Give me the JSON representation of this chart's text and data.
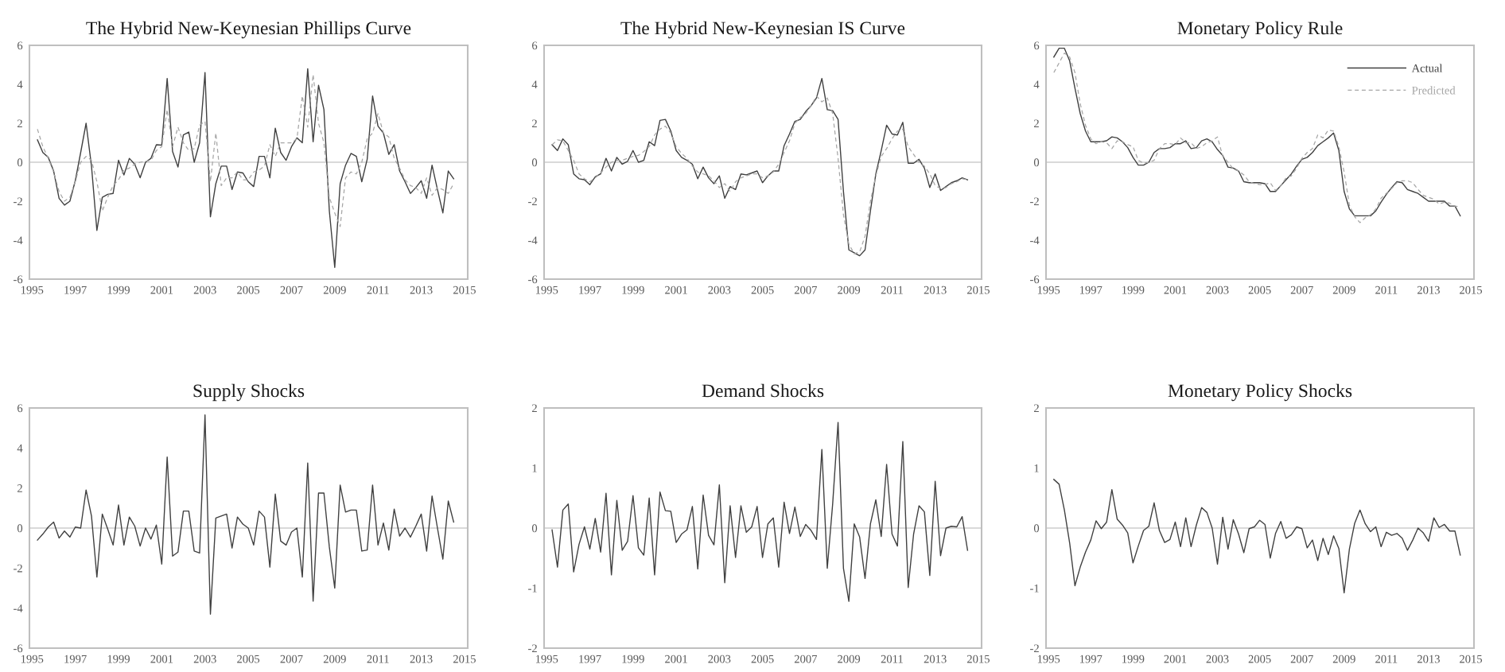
{
  "chart_data": [
    {
      "type": "line",
      "title": "The Hybrid New-Keynesian Phillips Curve",
      "x": [
        1995.25,
        1995.5,
        1995.75,
        1996,
        1996.25,
        1996.5,
        1996.75,
        1997,
        1997.25,
        1997.5,
        1997.75,
        1998,
        1998.25,
        1998.5,
        1998.75,
        1999,
        1999.25,
        1999.5,
        1999.75,
        2000,
        2000.25,
        2000.5,
        2000.75,
        2001,
        2001.25,
        2001.5,
        2001.75,
        2002,
        2002.25,
        2002.5,
        2002.75,
        2003,
        2003.25,
        2003.5,
        2003.75,
        2004,
        2004.25,
        2004.5,
        2004.75,
        2005,
        2005.25,
        2005.5,
        2005.75,
        2006,
        2006.25,
        2006.5,
        2006.75,
        2007,
        2007.25,
        2007.5,
        2007.75,
        2008,
        2008.25,
        2008.5,
        2008.75,
        2009,
        2009.25,
        2009.5,
        2009.75,
        2010,
        2010.25,
        2010.5,
        2010.75,
        2011,
        2011.25,
        2011.5,
        2011.75,
        2012,
        2012.25,
        2012.5,
        2012.75,
        2013,
        2013.25,
        2013.5,
        2013.75,
        2014,
        2014.25,
        2014.5
      ],
      "xlim": [
        1994.88,
        2015.15
      ],
      "xticks": [
        1995,
        1997,
        1999,
        2001,
        2003,
        2005,
        2007,
        2009,
        2011,
        2013,
        2015
      ],
      "ylim": [
        -6,
        6
      ],
      "yticks": [
        -6,
        -4,
        -2,
        0,
        2,
        4,
        6
      ],
      "ref_lines": [
        {
          "axis": "y",
          "value": 0,
          "color": "#d9d9d9"
        }
      ],
      "series": [
        {
          "color": "#404040",
          "line_style": "solid",
          "values": [
            1.15,
            0.5,
            0.25,
            -0.45,
            -1.85,
            -2.2,
            -2.0,
            -0.95,
            0.5,
            2.0,
            -0.2,
            -3.5,
            -1.8,
            -1.65,
            -1.6,
            0.1,
            -0.65,
            0.2,
            -0.1,
            -0.8,
            0.0,
            0.2,
            0.9,
            0.88,
            4.3,
            0.55,
            -0.25,
            1.4,
            1.55,
            0.0,
            1.0,
            4.6,
            -2.8,
            -1.1,
            -0.2,
            -0.2,
            -1.4,
            -0.5,
            -0.55,
            -1.0,
            -1.25,
            0.3,
            0.3,
            -0.8,
            1.75,
            0.5,
            0.1,
            0.8,
            1.25,
            1.0,
            4.8,
            1.05,
            3.95,
            2.7,
            -2.5,
            -5.4,
            -1.1,
            -0.15,
            0.45,
            0.3,
            -1.0,
            0.15,
            3.4,
            1.85,
            1.5,
            0.4,
            0.9,
            -0.45,
            -1.0,
            -1.6,
            -1.3,
            -0.95,
            -1.85,
            -0.15,
            -1.4,
            -2.6,
            -0.45,
            -0.85
          ]
        },
        {
          "color": "#a6a6a6",
          "line_style": "dashed",
          "values": [
            1.7,
            0.8,
            0.2,
            -0.5,
            -1.5,
            -2.0,
            -1.8,
            -1.0,
            0.0,
            0.3,
            0.1,
            -1.0,
            -2.5,
            -1.8,
            -1.2,
            -0.9,
            -0.4,
            -0.3,
            -0.1,
            0.0,
            0.05,
            0.1,
            0.6,
            0.8,
            2.7,
            0.8,
            1.8,
            1.0,
            0.6,
            0.7,
            1.9,
            2.1,
            -1.0,
            1.5,
            -1.2,
            -0.8,
            -0.8,
            -0.5,
            -0.9,
            -0.9,
            -0.5,
            -0.4,
            -0.2,
            0.9,
            0.3,
            1.0,
            1.0,
            1.0,
            1.2,
            3.4,
            1.8,
            4.5,
            2.0,
            1.0,
            -1.8,
            -2.6,
            -3.3,
            -0.8,
            -0.5,
            -0.6,
            0.0,
            1.2,
            1.5,
            2.5,
            1.5,
            1.3,
            0.2,
            -0.3,
            -0.9,
            -1.2,
            -1.3,
            -1.6,
            -0.8,
            -1.7,
            -1.3,
            -1.4,
            -1.6,
            -1.1
          ]
        }
      ]
    },
    {
      "type": "line",
      "title": "The Hybrid New-Keynesian IS Curve",
      "x": [
        1995.25,
        1995.5,
        1995.75,
        1996,
        1996.25,
        1996.5,
        1996.75,
        1997,
        1997.25,
        1997.5,
        1997.75,
        1998,
        1998.25,
        1998.5,
        1998.75,
        1999,
        1999.25,
        1999.5,
        1999.75,
        2000,
        2000.25,
        2000.5,
        2000.75,
        2001,
        2001.25,
        2001.5,
        2001.75,
        2002,
        2002.25,
        2002.5,
        2002.75,
        2003,
        2003.25,
        2003.5,
        2003.75,
        2004,
        2004.25,
        2004.5,
        2004.75,
        2005,
        2005.25,
        2005.5,
        2005.75,
        2006,
        2006.25,
        2006.5,
        2006.75,
        2007,
        2007.25,
        2007.5,
        2007.75,
        2008,
        2008.25,
        2008.5,
        2008.75,
        2009,
        2009.25,
        2009.5,
        2009.75,
        2010,
        2010.25,
        2010.5,
        2010.75,
        2011,
        2011.25,
        2011.5,
        2011.75,
        2012,
        2012.25,
        2012.5,
        2012.75,
        2013,
        2013.25,
        2013.5,
        2013.75,
        2014,
        2014.25,
        2014.5
      ],
      "xlim": [
        1994.88,
        2015.15
      ],
      "xticks": [
        1995,
        1997,
        1999,
        2001,
        2003,
        2005,
        2007,
        2009,
        2011,
        2013,
        2015
      ],
      "ylim": [
        -6,
        6
      ],
      "yticks": [
        -6,
        -4,
        -2,
        0,
        2,
        4,
        6
      ],
      "ref_lines": [
        {
          "axis": "y",
          "value": 0,
          "color": "#d9d9d9"
        }
      ],
      "series": [
        {
          "color": "#404040",
          "line_style": "solid",
          "values": [
            0.9,
            0.6,
            1.2,
            0.9,
            -0.6,
            -0.85,
            -0.9,
            -1.15,
            -0.75,
            -0.6,
            0.2,
            -0.45,
            0.25,
            -0.1,
            0.05,
            0.6,
            0.0,
            0.1,
            1.05,
            0.85,
            2.15,
            2.2,
            1.6,
            0.6,
            0.25,
            0.1,
            -0.1,
            -0.85,
            -0.25,
            -0.8,
            -1.1,
            -0.7,
            -1.85,
            -1.25,
            -1.4,
            -0.6,
            -0.65,
            -0.55,
            -0.45,
            -1.05,
            -0.7,
            -0.45,
            -0.45,
            0.85,
            1.45,
            2.1,
            2.2,
            2.6,
            2.9,
            3.3,
            4.3,
            2.7,
            2.65,
            2.2,
            -1.5,
            -4.5,
            -4.65,
            -4.8,
            -4.5,
            -2.5,
            -0.6,
            0.6,
            1.9,
            1.45,
            1.4,
            2.05,
            -0.05,
            -0.05,
            0.15,
            -0.3,
            -1.3,
            -0.6,
            -1.45,
            -1.25,
            -1.05,
            -0.95,
            -0.8,
            -0.9
          ]
        },
        {
          "color": "#a6a6a6",
          "line_style": "dashed",
          "values": [
            0.9,
            1.15,
            1.1,
            0.6,
            0.1,
            -0.6,
            -0.85,
            -1.0,
            -0.8,
            -0.55,
            -0.25,
            0.0,
            0.1,
            0.1,
            0.2,
            0.3,
            0.35,
            0.55,
            0.8,
            1.4,
            1.7,
            1.85,
            1.5,
            0.8,
            0.45,
            0.2,
            -0.2,
            -0.5,
            -0.6,
            -0.7,
            -0.95,
            -1.3,
            -1.1,
            -1.5,
            -1.0,
            -0.8,
            -0.7,
            -0.6,
            -0.6,
            -0.8,
            -0.7,
            -0.5,
            -0.1,
            0.5,
            1.1,
            2.0,
            2.3,
            2.5,
            2.9,
            3.4,
            3.1,
            3.3,
            2.5,
            0.2,
            -2.7,
            -4.2,
            -4.7,
            -4.6,
            -3.8,
            -2.0,
            -0.7,
            0.3,
            0.7,
            1.2,
            1.6,
            1.7,
            0.8,
            0.4,
            0.0,
            -0.2,
            -0.6,
            -1.2,
            -1.35,
            -1.3,
            -1.1,
            -1.0,
            -0.85,
            -0.9
          ]
        }
      ]
    },
    {
      "type": "line",
      "title": "Monetary Policy Rule",
      "legend": "top right",
      "x": [
        1995.25,
        1995.5,
        1995.75,
        1996,
        1996.25,
        1996.5,
        1996.75,
        1997,
        1997.25,
        1997.5,
        1997.75,
        1998,
        1998.25,
        1998.5,
        1998.75,
        1999,
        1999.25,
        1999.5,
        1999.75,
        2000,
        2000.25,
        2000.5,
        2000.75,
        2001,
        2001.25,
        2001.5,
        2001.75,
        2002,
        2002.25,
        2002.5,
        2002.75,
        2003,
        2003.25,
        2003.5,
        2003.75,
        2004,
        2004.25,
        2004.5,
        2004.75,
        2005,
        2005.25,
        2005.5,
        2005.75,
        2006,
        2006.25,
        2006.5,
        2006.75,
        2007,
        2007.25,
        2007.5,
        2007.75,
        2008,
        2008.25,
        2008.5,
        2008.75,
        2009,
        2009.25,
        2009.5,
        2009.75,
        2010,
        2010.25,
        2010.5,
        2010.75,
        2011,
        2011.25,
        2011.5,
        2011.75,
        2012,
        2012.25,
        2012.5,
        2012.75,
        2013,
        2013.25,
        2013.5,
        2013.75,
        2014,
        2014.25,
        2014.5
      ],
      "xlim": [
        1994.88,
        2015.15
      ],
      "xticks": [
        1995,
        1997,
        1999,
        2001,
        2003,
        2005,
        2007,
        2009,
        2011,
        2013,
        2015
      ],
      "ylim": [
        -6,
        6
      ],
      "yticks": [
        -6,
        -4,
        -2,
        0,
        2,
        4,
        6
      ],
      "ref_lines": [
        {
          "axis": "y",
          "value": 0,
          "color": "#d9d9d9"
        }
      ],
      "series": [
        {
          "name": "Actual",
          "color": "#404040",
          "line_style": "solid",
          "values": [
            5.4,
            5.85,
            5.85,
            5.2,
            3.8,
            2.5,
            1.6,
            1.05,
            1.05,
            1.05,
            1.1,
            1.3,
            1.25,
            1.05,
            0.75,
            0.25,
            -0.15,
            -0.15,
            0.0,
            0.5,
            0.7,
            0.7,
            0.75,
            0.95,
            0.95,
            1.1,
            0.7,
            0.75,
            1.1,
            1.2,
            1.05,
            0.65,
            0.35,
            -0.25,
            -0.3,
            -0.45,
            -1.0,
            -1.05,
            -1.05,
            -1.05,
            -1.1,
            -1.5,
            -1.5,
            -1.2,
            -0.9,
            -0.6,
            -0.2,
            0.15,
            0.25,
            0.5,
            0.85,
            1.05,
            1.25,
            1.5,
            0.6,
            -1.5,
            -2.4,
            -2.75,
            -2.75,
            -2.75,
            -2.75,
            -2.5,
            -2.05,
            -1.65,
            -1.3,
            -1.0,
            -1.05,
            -1.4,
            -1.5,
            -1.6,
            -1.8,
            -2.0,
            -2.0,
            -2.0,
            -2.0,
            -2.25,
            -2.25,
            -2.75
          ]
        },
        {
          "name": "Predicted",
          "color": "#a6a6a6",
          "line_style": "dashed",
          "values": [
            4.6,
            5.1,
            5.6,
            5.4,
            4.6,
            3.0,
            1.9,
            1.2,
            0.95,
            1.05,
            1.0,
            0.7,
            1.1,
            1.05,
            0.9,
            0.8,
            0.1,
            -0.05,
            0.0,
            0.1,
            0.7,
            0.95,
            0.95,
            0.9,
            1.25,
            1.0,
            1.0,
            0.7,
            0.8,
            1.0,
            1.1,
            1.3,
            0.3,
            0.0,
            -0.35,
            -0.45,
            -0.65,
            -1.0,
            -1.1,
            -1.15,
            -1.15,
            -1.05,
            -1.45,
            -1.2,
            -0.8,
            -0.7,
            -0.3,
            0.2,
            0.5,
            0.7,
            1.4,
            1.25,
            1.65,
            1.6,
            0.8,
            -0.5,
            -2.2,
            -2.8,
            -3.1,
            -2.85,
            -2.7,
            -2.4,
            -1.85,
            -1.6,
            -1.35,
            -1.05,
            -0.95,
            -0.95,
            -1.05,
            -1.4,
            -1.7,
            -1.8,
            -1.9,
            -2.15,
            -2.05,
            -2.1,
            -2.25,
            -2.3
          ]
        }
      ]
    },
    {
      "type": "line",
      "title": "Supply Shocks",
      "x": [
        1995.25,
        1995.5,
        1995.75,
        1996,
        1996.25,
        1996.5,
        1996.75,
        1997,
        1997.25,
        1997.5,
        1997.75,
        1998,
        1998.25,
        1998.5,
        1998.75,
        1999,
        1999.25,
        1999.5,
        1999.75,
        2000,
        2000.25,
        2000.5,
        2000.75,
        2001,
        2001.25,
        2001.5,
        2001.75,
        2002,
        2002.25,
        2002.5,
        2002.75,
        2003,
        2003.25,
        2003.5,
        2003.75,
        2004,
        2004.25,
        2004.5,
        2004.75,
        2005,
        2005.25,
        2005.5,
        2005.75,
        2006,
        2006.25,
        2006.5,
        2006.75,
        2007,
        2007.25,
        2007.5,
        2007.75,
        2008,
        2008.25,
        2008.5,
        2008.75,
        2009,
        2009.25,
        2009.5,
        2009.75,
        2010,
        2010.25,
        2010.5,
        2010.75,
        2011,
        2011.25,
        2011.5,
        2011.75,
        2012,
        2012.25,
        2012.5,
        2012.75,
        2013,
        2013.25,
        2013.5,
        2013.75,
        2014,
        2014.25,
        2014.5
      ],
      "xlim": [
        1994.88,
        2015.15
      ],
      "xticks": [
        1995,
        1997,
        1999,
        2001,
        2003,
        2005,
        2007,
        2009,
        2011,
        2013,
        2015
      ],
      "ylim": [
        -6,
        6
      ],
      "yticks": [
        -6,
        -4,
        -2,
        0,
        2,
        4,
        6
      ],
      "ref_lines": [
        {
          "axis": "y",
          "value": 0,
          "color": "#d9d9d9"
        }
      ],
      "series": [
        {
          "color": "#404040",
          "line_style": "solid",
          "values": [
            -0.6,
            -0.3,
            0.05,
            0.3,
            -0.5,
            -0.15,
            -0.45,
            0.05,
            0.0,
            1.9,
            0.6,
            -2.45,
            0.7,
            -0.05,
            -0.85,
            1.15,
            -0.85,
            0.55,
            0.1,
            -0.9,
            0.0,
            -0.55,
            0.15,
            -1.8,
            3.55,
            -1.4,
            -1.2,
            0.85,
            0.85,
            -1.15,
            -1.25,
            5.65,
            -4.3,
            0.5,
            0.6,
            0.7,
            -1.0,
            0.55,
            0.2,
            0.0,
            -0.85,
            0.85,
            0.55,
            -1.95,
            1.7,
            -0.65,
            -0.85,
            -0.2,
            0.0,
            -2.45,
            3.25,
            -3.65,
            1.75,
            1.75,
            -0.95,
            -3.0,
            2.15,
            0.8,
            0.9,
            0.9,
            -1.15,
            -1.1,
            2.15,
            -0.85,
            0.25,
            -1.1,
            0.95,
            -0.4,
            0.0,
            -0.45,
            0.1,
            0.7,
            -1.15,
            1.6,
            0.0,
            -1.55,
            1.35,
            0.3
          ]
        }
      ]
    },
    {
      "type": "line",
      "title": "Demand Shocks",
      "x": [
        1995.25,
        1995.5,
        1995.75,
        1996,
        1996.25,
        1996.5,
        1996.75,
        1997,
        1997.25,
        1997.5,
        1997.75,
        1998,
        1998.25,
        1998.5,
        1998.75,
        1999,
        1999.25,
        1999.5,
        1999.75,
        2000,
        2000.25,
        2000.5,
        2000.75,
        2001,
        2001.25,
        2001.5,
        2001.75,
        2002,
        2002.25,
        2002.5,
        2002.75,
        2003,
        2003.25,
        2003.5,
        2003.75,
        2004,
        2004.25,
        2004.5,
        2004.75,
        2005,
        2005.25,
        2005.5,
        2005.75,
        2006,
        2006.25,
        2006.5,
        2006.75,
        2007,
        2007.25,
        2007.5,
        2007.75,
        2008,
        2008.25,
        2008.5,
        2008.75,
        2009,
        2009.25,
        2009.5,
        2009.75,
        2010,
        2010.25,
        2010.5,
        2010.75,
        2011,
        2011.25,
        2011.5,
        2011.75,
        2012,
        2012.25,
        2012.5,
        2012.75,
        2013,
        2013.25,
        2013.5,
        2013.75,
        2014,
        2014.25,
        2014.5
      ],
      "xlim": [
        1994.88,
        2015.15
      ],
      "xticks": [
        1995,
        1997,
        1999,
        2001,
        2003,
        2005,
        2007,
        2009,
        2011,
        2013,
        2015
      ],
      "ylim": [
        -2,
        2
      ],
      "yticks": [
        -2,
        -1,
        0,
        1,
        2
      ],
      "ref_lines": [
        {
          "axis": "y",
          "value": 0,
          "color": "#d9d9d9"
        }
      ],
      "series": [
        {
          "color": "#404040",
          "line_style": "solid",
          "values": [
            -0.03,
            -0.65,
            0.3,
            0.4,
            -0.73,
            -0.27,
            0.02,
            -0.35,
            0.16,
            -0.4,
            0.58,
            -0.78,
            0.46,
            -0.37,
            -0.22,
            0.54,
            -0.33,
            -0.45,
            0.5,
            -0.78,
            0.6,
            0.29,
            0.28,
            -0.24,
            -0.1,
            -0.03,
            0.36,
            -0.68,
            0.55,
            -0.12,
            -0.28,
            0.72,
            -0.91,
            0.37,
            -0.49,
            0.37,
            -0.07,
            0.02,
            0.36,
            -0.49,
            0.07,
            0.17,
            -0.65,
            0.43,
            -0.09,
            0.35,
            -0.14,
            0.06,
            -0.04,
            -0.19,
            1.31,
            -0.67,
            0.4,
            1.76,
            -0.67,
            -1.22,
            0.07,
            -0.15,
            -0.84,
            0.07,
            0.47,
            -0.14,
            1.06,
            -0.1,
            -0.3,
            1.44,
            -0.99,
            -0.1,
            0.37,
            0.27,
            -0.79,
            0.78,
            -0.46,
            0.0,
            0.03,
            0.02,
            0.19,
            -0.37
          ]
        }
      ]
    },
    {
      "type": "line",
      "title": "Monetary Policy Shocks",
      "x": [
        1995.25,
        1995.5,
        1995.75,
        1996,
        1996.25,
        1996.5,
        1996.75,
        1997,
        1997.25,
        1997.5,
        1997.75,
        1998,
        1998.25,
        1998.5,
        1998.75,
        1999,
        1999.25,
        1999.5,
        1999.75,
        2000,
        2000.25,
        2000.5,
        2000.75,
        2001,
        2001.25,
        2001.5,
        2001.75,
        2002,
        2002.25,
        2002.5,
        2002.75,
        2003,
        2003.25,
        2003.5,
        2003.75,
        2004,
        2004.25,
        2004.5,
        2004.75,
        2005,
        2005.25,
        2005.5,
        2005.75,
        2006,
        2006.25,
        2006.5,
        2006.75,
        2007,
        2007.25,
        2007.5,
        2007.75,
        2008,
        2008.25,
        2008.5,
        2008.75,
        2009,
        2009.25,
        2009.5,
        2009.75,
        2010,
        2010.25,
        2010.5,
        2010.75,
        2011,
        2011.25,
        2011.5,
        2011.75,
        2012,
        2012.25,
        2012.5,
        2012.75,
        2013,
        2013.25,
        2013.5,
        2013.75,
        2014,
        2014.25,
        2014.5
      ],
      "xlim": [
        1994.88,
        2015.15
      ],
      "xticks": [
        1995,
        1997,
        1999,
        2001,
        2003,
        2005,
        2007,
        2009,
        2011,
        2013,
        2015
      ],
      "ylim": [
        -2,
        2
      ],
      "yticks": [
        -2,
        -1,
        0,
        1,
        2
      ],
      "ref_lines": [
        {
          "axis": "y",
          "value": 0,
          "color": "#d9d9d9"
        }
      ],
      "series": [
        {
          "color": "#404040",
          "line_style": "solid",
          "values": [
            0.81,
            0.73,
            0.3,
            -0.25,
            -0.96,
            -0.65,
            -0.4,
            -0.2,
            0.12,
            -0.01,
            0.1,
            0.64,
            0.15,
            0.05,
            -0.08,
            -0.58,
            -0.3,
            -0.04,
            0.03,
            0.42,
            -0.04,
            -0.24,
            -0.19,
            0.1,
            -0.31,
            0.17,
            -0.31,
            0.05,
            0.34,
            0.26,
            0.0,
            -0.6,
            0.18,
            -0.35,
            0.14,
            -0.1,
            -0.41,
            -0.01,
            0.02,
            0.13,
            0.06,
            -0.5,
            -0.09,
            0.11,
            -0.17,
            -0.11,
            0.02,
            -0.01,
            -0.33,
            -0.2,
            -0.54,
            -0.17,
            -0.44,
            -0.13,
            -0.34,
            -1.08,
            -0.35,
            0.08,
            0.3,
            0.07,
            -0.06,
            0.02,
            -0.31,
            -0.07,
            -0.12,
            -0.09,
            -0.17,
            -0.37,
            -0.2,
            0.0,
            -0.08,
            -0.22,
            0.17,
            0.01,
            0.06,
            -0.05,
            -0.05,
            -0.45
          ]
        }
      ]
    }
  ]
}
